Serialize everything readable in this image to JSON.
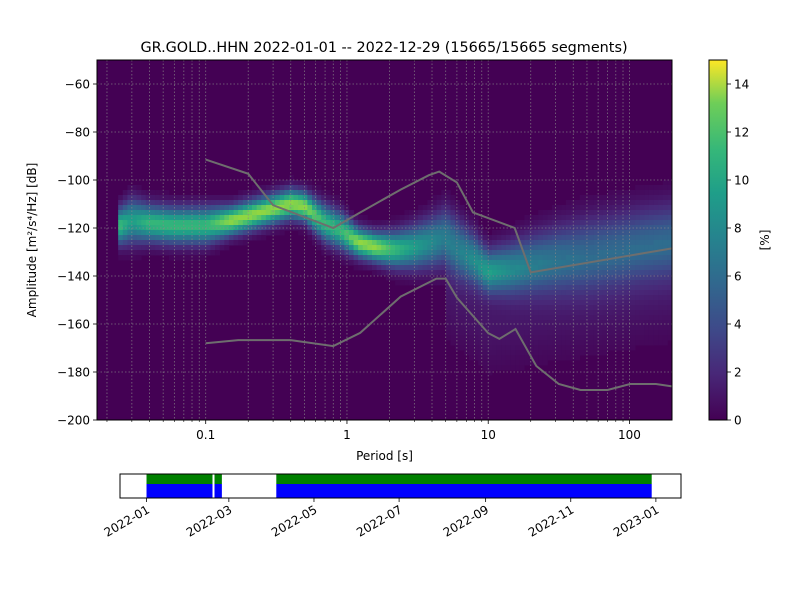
{
  "chart_data": [
    {
      "type": "heatmap",
      "title": "GR.GOLD..HHN   2022-01-01 -- 2022-12-29  (15665/15665 segments)",
      "xlabel": "Period [s]",
      "ylabel": "Amplitude [m²/s⁴/Hz] [dB]",
      "x_scale": "log",
      "xlim": [
        0.017,
        200
      ],
      "ylim": [
        -200,
        -50
      ],
      "x_ticks": [
        0.1,
        1,
        10,
        100
      ],
      "x_tick_labels": [
        "0.1",
        "1",
        "10",
        "100"
      ],
      "y_ticks": [
        -60,
        -80,
        -100,
        -120,
        -140,
        -160,
        -180,
        -200
      ],
      "y_tick_labels": [
        "−60",
        "−80",
        "−100",
        "−120",
        "−140",
        "−160",
        "−180",
        "−200"
      ],
      "grid": true,
      "colorbar": {
        "label": "[%]",
        "min": 0,
        "max": 15,
        "ticks": [
          0,
          2,
          4,
          6,
          8,
          10,
          12,
          14
        ],
        "tick_labels": [
          "0",
          "2",
          "4",
          "6",
          "8",
          "10",
          "12",
          "14"
        ],
        "colormap": "viridis"
      },
      "mode_curve": {
        "period": [
          0.025,
          0.03,
          0.04,
          0.06,
          0.1,
          0.15,
          0.2,
          0.3,
          0.4,
          0.5,
          0.7,
          0.9,
          1.2,
          1.6,
          2.2,
          3,
          4,
          5,
          6,
          8,
          10,
          14,
          20,
          30,
          50,
          80,
          120,
          200
        ],
        "db": [
          -119,
          -117,
          -118,
          -119,
          -119,
          -117,
          -115,
          -112,
          -110,
          -111,
          -118,
          -121,
          -126,
          -128,
          -129,
          -128,
          -126,
          -124,
          -128,
          -133,
          -138,
          -137,
          -135,
          -133,
          -131,
          -129,
          -127,
          -125
        ],
        "spread_db": [
          5,
          6,
          5,
          5,
          5,
          4,
          4,
          4,
          4,
          4,
          5,
          5,
          4,
          4,
          5,
          6,
          7,
          8,
          8,
          7,
          6,
          7,
          8,
          9,
          10,
          10,
          10,
          10
        ]
      },
      "noise_models": [
        {
          "period": [
            0.1,
            0.2,
            0.3,
            0.8,
            1.2,
            2.4,
            3.8,
            4.5,
            6.0,
            7.8,
            15.4,
            20,
            200
          ],
          "db": [
            -91.5,
            -97.4,
            -110.5,
            -120,
            -114,
            -104,
            -98,
            -96.5,
            -101,
            -113.5,
            -120,
            -138.5,
            -128.5
          ]
        },
        {
          "period": [
            0.1,
            0.17,
            0.4,
            0.8,
            1.24,
            2.4,
            4.3,
            5.0,
            6.0,
            10,
            12,
            15.6,
            21.9,
            31.6,
            45,
            70,
            101,
            154,
            200
          ],
          "db": [
            -168,
            -166.7,
            -166.7,
            -169.2,
            -163.7,
            -148.6,
            -141.1,
            -141.1,
            -149,
            -163.8,
            -166.2,
            -162.1,
            -177.5,
            -185,
            -187.5,
            -187.5,
            -185,
            -185,
            -186
          ]
        }
      ],
      "vertical_grid_periods": [
        0.02,
        0.03,
        0.04,
        0.05,
        0.06,
        0.07,
        0.08,
        0.09,
        0.2,
        0.3,
        0.4,
        0.5,
        0.6,
        0.7,
        0.8,
        0.9,
        2,
        3,
        4,
        5,
        6,
        7,
        8,
        9,
        20,
        30,
        40,
        50,
        60,
        70,
        80,
        90
      ]
    },
    {
      "type": "timeline",
      "x_ticks": [
        "2022-01",
        "2022-03",
        "2022-05",
        "2022-07",
        "2022-09",
        "2022-11",
        "2023-01"
      ],
      "xlim": [
        "2021-12-13",
        "2023-01-19"
      ],
      "data_available": [
        {
          "start": "2022-01-01",
          "end": "2022-02-24"
        },
        {
          "start": "2022-04-04",
          "end": "2022-12-29"
        }
      ],
      "gaps": [
        "2022-02-18"
      ],
      "colors": {
        "data": "#0000ff",
        "used": "#008000",
        "gap_marker": "#ffffff"
      }
    }
  ]
}
